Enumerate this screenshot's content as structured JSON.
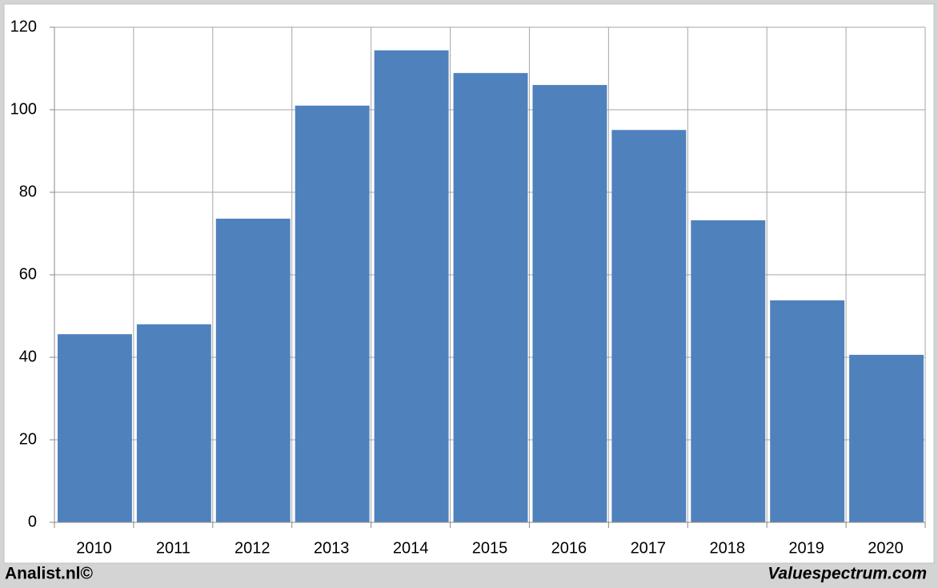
{
  "chart_data": {
    "type": "bar",
    "categories": [
      "2010",
      "2011",
      "2012",
      "2013",
      "2014",
      "2015",
      "2016",
      "2017",
      "2018",
      "2019",
      "2020"
    ],
    "values": [
      45.6,
      48.0,
      73.6,
      101.0,
      114.4,
      108.9,
      106.0,
      95.1,
      73.2,
      53.8,
      40.6
    ],
    "color": "#4f81bd",
    "ylim": [
      0,
      120
    ],
    "yticks": [
      0,
      20,
      40,
      60,
      80,
      100,
      120
    ],
    "grid": true,
    "source_left": "Analist.nl©",
    "source_right": "Valuespectrum.com"
  }
}
